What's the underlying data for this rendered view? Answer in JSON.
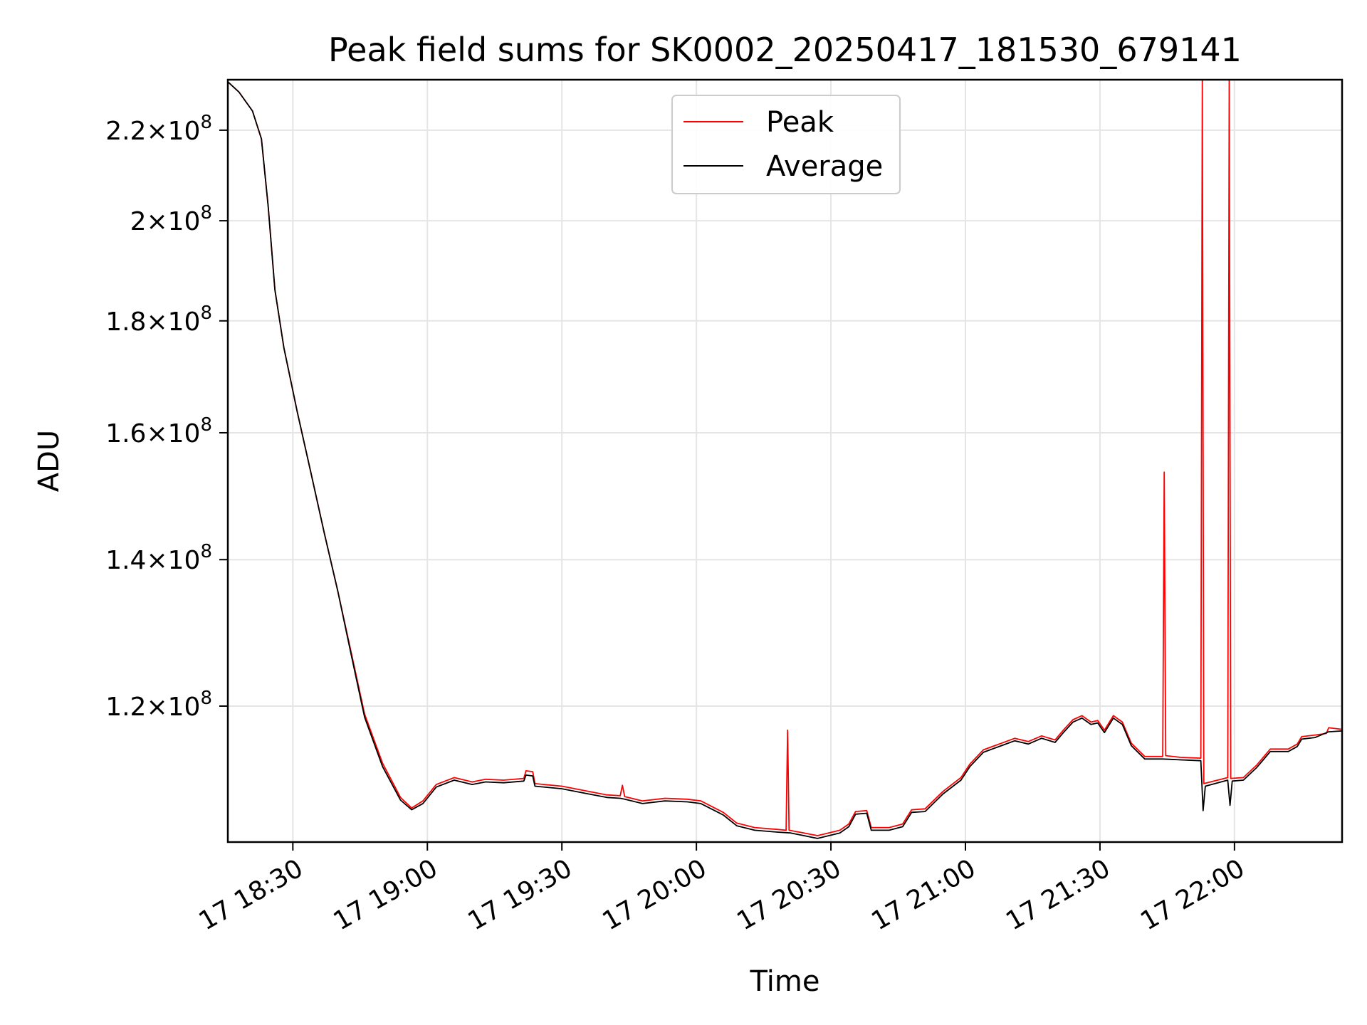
{
  "chart_data": {
    "type": "line",
    "title": "Peak field sums for SK0002_20250417_181530_679141",
    "xlabel": "Time",
    "ylabel": "ADU",
    "yscale": "log",
    "grid": true,
    "legend_position": "top-center",
    "xlim": [
      "2025-04-17 18:15:30",
      "2025-04-17 22:24:00"
    ],
    "ylim": [
      104000000,
      232000000
    ],
    "x_ticks": [
      {
        "value": "2025-04-17 18:30",
        "label": "17 18:30"
      },
      {
        "value": "2025-04-17 19:00",
        "label": "17 19:00"
      },
      {
        "value": "2025-04-17 19:30",
        "label": "17 19:30"
      },
      {
        "value": "2025-04-17 20:00",
        "label": "17 20:00"
      },
      {
        "value": "2025-04-17 20:30",
        "label": "17 20:30"
      },
      {
        "value": "2025-04-17 21:00",
        "label": "17 21:00"
      },
      {
        "value": "2025-04-17 21:30",
        "label": "17 21:30"
      },
      {
        "value": "2025-04-17 22:00",
        "label": "17 22:00"
      }
    ],
    "y_ticks": [
      {
        "value": 120000000,
        "mantissa": "1.2",
        "exponent": "8"
      },
      {
        "value": 140000000,
        "mantissa": "1.4",
        "exponent": "8"
      },
      {
        "value": 160000000,
        "mantissa": "1.6",
        "exponent": "8"
      },
      {
        "value": 180000000,
        "mantissa": "1.8",
        "exponent": "8"
      },
      {
        "value": 200000000,
        "mantissa": "2",
        "exponent": "8"
      },
      {
        "value": 220000000,
        "mantissa": "2.2",
        "exponent": "8"
      }
    ],
    "series": [
      {
        "name": "Peak",
        "color": "#ff0000",
        "points": [
          [
            "2025-04-17 18:15:30",
            231500000
          ],
          [
            "2025-04-17 18:18:00",
            229000000
          ],
          [
            "2025-04-17 18:21:00",
            224500000
          ],
          [
            "2025-04-17 18:23:00",
            218000000
          ],
          [
            "2025-04-17 18:24:30",
            203000000
          ],
          [
            "2025-04-17 18:26:00",
            186000000
          ],
          [
            "2025-04-17 18:28:00",
            175000000
          ],
          [
            "2025-04-17 18:31:00",
            163500000
          ],
          [
            "2025-04-17 18:34:00",
            153500000
          ],
          [
            "2025-04-17 18:37:00",
            144000000
          ],
          [
            "2025-04-17 18:40:00",
            135500000
          ],
          [
            "2025-04-17 18:43:00",
            127000000
          ],
          [
            "2025-04-17 18:46:00",
            119000000
          ],
          [
            "2025-04-17 18:50:00",
            113000000
          ],
          [
            "2025-04-17 18:54:00",
            109000000
          ],
          [
            "2025-04-17 18:56:30",
            107800000
          ],
          [
            "2025-04-17 18:59:00",
            108600000
          ],
          [
            "2025-04-17 19:02:00",
            110500000
          ],
          [
            "2025-04-17 19:06:00",
            111300000
          ],
          [
            "2025-04-17 19:10:00",
            110800000
          ],
          [
            "2025-04-17 19:13:00",
            111100000
          ],
          [
            "2025-04-17 19:17:00",
            111000000
          ],
          [
            "2025-04-17 19:21:30",
            111200000
          ],
          [
            "2025-04-17 19:22:00",
            112100000
          ],
          [
            "2025-04-17 19:23:30",
            112000000
          ],
          [
            "2025-04-17 19:24:00",
            110600000
          ],
          [
            "2025-04-17 19:30:00",
            110300000
          ],
          [
            "2025-04-17 19:35:00",
            109800000
          ],
          [
            "2025-04-17 19:40:00",
            109300000
          ],
          [
            "2025-04-17 19:43:00",
            109200000
          ],
          [
            "2025-04-17 19:43:30",
            110400000
          ],
          [
            "2025-04-17 19:44:00",
            109100000
          ],
          [
            "2025-04-17 19:48:00",
            108600000
          ],
          [
            "2025-04-17 19:53:00",
            108900000
          ],
          [
            "2025-04-17 19:58:00",
            108800000
          ],
          [
            "2025-04-17 20:01:00",
            108600000
          ],
          [
            "2025-04-17 20:06:00",
            107300000
          ],
          [
            "2025-04-17 20:09:00",
            106100000
          ],
          [
            "2025-04-17 20:13:00",
            105600000
          ],
          [
            "2025-04-17 20:18:00",
            105400000
          ],
          [
            "2025-04-17 20:20:00",
            105300000
          ],
          [
            "2025-04-17 20:20:20",
            117000000
          ],
          [
            "2025-04-17 20:20:40",
            105300000
          ],
          [
            "2025-04-17 20:24:00",
            105000000
          ],
          [
            "2025-04-17 20:27:00",
            104700000
          ],
          [
            "2025-04-17 20:32:00",
            105300000
          ],
          [
            "2025-04-17 20:34:00",
            106000000
          ],
          [
            "2025-04-17 20:35:30",
            107400000
          ],
          [
            "2025-04-17 20:38:00",
            107500000
          ],
          [
            "2025-04-17 20:39:00",
            105600000
          ],
          [
            "2025-04-17 20:43:00",
            105600000
          ],
          [
            "2025-04-17 20:46:00",
            106000000
          ],
          [
            "2025-04-17 20:48:00",
            107600000
          ],
          [
            "2025-04-17 20:51:00",
            107700000
          ],
          [
            "2025-04-17 20:55:00",
            109700000
          ],
          [
            "2025-04-17 20:59:00",
            111300000
          ],
          [
            "2025-04-17 21:01:00",
            112900000
          ],
          [
            "2025-04-17 21:04:00",
            114600000
          ],
          [
            "2025-04-17 21:08:00",
            115400000
          ],
          [
            "2025-04-17 21:11:00",
            116000000
          ],
          [
            "2025-04-17 21:14:00",
            115600000
          ],
          [
            "2025-04-17 21:17:00",
            116300000
          ],
          [
            "2025-04-17 21:20:00",
            115800000
          ],
          [
            "2025-04-17 21:22:00",
            117100000
          ],
          [
            "2025-04-17 21:24:00",
            118300000
          ],
          [
            "2025-04-17 21:26:00",
            118800000
          ],
          [
            "2025-04-17 21:28:00",
            118000000
          ],
          [
            "2025-04-17 21:29:30",
            118200000
          ],
          [
            "2025-04-17 21:31:00",
            117000000
          ],
          [
            "2025-04-17 21:33:00",
            118800000
          ],
          [
            "2025-04-17 21:35:00",
            118000000
          ],
          [
            "2025-04-17 21:37:00",
            115400000
          ],
          [
            "2025-04-17 21:40:00",
            113800000
          ],
          [
            "2025-04-17 21:44:00",
            113800000
          ],
          [
            "2025-04-17 21:44:20",
            153500000
          ],
          [
            "2025-04-17 21:44:40",
            113900000
          ],
          [
            "2025-04-17 21:48:00",
            113700000
          ],
          [
            "2025-04-17 21:52:30",
            113600000
          ],
          [
            "2025-04-17 21:52:50",
            232000000
          ],
          [
            "2025-04-17 21:53:10",
            110600000
          ],
          [
            "2025-04-17 21:58:30",
            111300000
          ],
          [
            "2025-04-17 21:58:50",
            232000000
          ],
          [
            "2025-04-17 21:59:10",
            111200000
          ],
          [
            "2025-04-17 22:02:00",
            111300000
          ],
          [
            "2025-04-17 22:05:00",
            112800000
          ],
          [
            "2025-04-17 22:08:00",
            114700000
          ],
          [
            "2025-04-17 22:12:00",
            114700000
          ],
          [
            "2025-04-17 22:14:00",
            115300000
          ],
          [
            "2025-04-17 22:15:00",
            116200000
          ],
          [
            "2025-04-17 22:18:00",
            116400000
          ],
          [
            "2025-04-17 22:20:30",
            116600000
          ],
          [
            "2025-04-17 22:21:00",
            117300000
          ],
          [
            "2025-04-17 22:24:00",
            117100000
          ]
        ]
      },
      {
        "name": "Average",
        "color": "#000000",
        "points": [
          [
            "2025-04-17 18:15:30",
            231500000
          ],
          [
            "2025-04-17 18:18:00",
            229000000
          ],
          [
            "2025-04-17 18:21:00",
            224500000
          ],
          [
            "2025-04-17 18:23:00",
            218000000
          ],
          [
            "2025-04-17 18:24:30",
            203000000
          ],
          [
            "2025-04-17 18:26:00",
            186000000
          ],
          [
            "2025-04-17 18:28:00",
            175000000
          ],
          [
            "2025-04-17 18:31:00",
            163500000
          ],
          [
            "2025-04-17 18:34:00",
            153500000
          ],
          [
            "2025-04-17 18:37:00",
            144000000
          ],
          [
            "2025-04-17 18:40:00",
            135500000
          ],
          [
            "2025-04-17 18:43:00",
            126700000
          ],
          [
            "2025-04-17 18:46:00",
            118600000
          ],
          [
            "2025-04-17 18:50:00",
            112600000
          ],
          [
            "2025-04-17 18:54:00",
            108700000
          ],
          [
            "2025-04-17 18:56:30",
            107600000
          ],
          [
            "2025-04-17 18:59:00",
            108300000
          ],
          [
            "2025-04-17 19:02:00",
            110200000
          ],
          [
            "2025-04-17 19:06:00",
            111000000
          ],
          [
            "2025-04-17 19:10:00",
            110500000
          ],
          [
            "2025-04-17 19:13:00",
            110800000
          ],
          [
            "2025-04-17 19:17:00",
            110700000
          ],
          [
            "2025-04-17 19:21:30",
            110900000
          ],
          [
            "2025-04-17 19:22:00",
            111600000
          ],
          [
            "2025-04-17 19:23:30",
            111500000
          ],
          [
            "2025-04-17 19:24:00",
            110300000
          ],
          [
            "2025-04-17 19:30:00",
            110000000
          ],
          [
            "2025-04-17 19:35:00",
            109500000
          ],
          [
            "2025-04-17 19:40:00",
            109000000
          ],
          [
            "2025-04-17 19:43:00",
            108900000
          ],
          [
            "2025-04-17 19:44:00",
            108800000
          ],
          [
            "2025-04-17 19:48:00",
            108300000
          ],
          [
            "2025-04-17 19:53:00",
            108600000
          ],
          [
            "2025-04-17 19:58:00",
            108500000
          ],
          [
            "2025-04-17 20:01:00",
            108300000
          ],
          [
            "2025-04-17 20:06:00",
            107000000
          ],
          [
            "2025-04-17 20:09:00",
            105800000
          ],
          [
            "2025-04-17 20:13:00",
            105300000
          ],
          [
            "2025-04-17 20:18:00",
            105100000
          ],
          [
            "2025-04-17 20:21:00",
            105000000
          ],
          [
            "2025-04-17 20:24:00",
            104700000
          ],
          [
            "2025-04-17 20:27:00",
            104400000
          ],
          [
            "2025-04-17 20:32:00",
            105000000
          ],
          [
            "2025-04-17 20:34:00",
            105700000
          ],
          [
            "2025-04-17 20:35:30",
            107100000
          ],
          [
            "2025-04-17 20:38:00",
            107200000
          ],
          [
            "2025-04-17 20:39:00",
            105300000
          ],
          [
            "2025-04-17 20:43:00",
            105300000
          ],
          [
            "2025-04-17 20:46:00",
            105700000
          ],
          [
            "2025-04-17 20:48:00",
            107300000
          ],
          [
            "2025-04-17 20:51:00",
            107400000
          ],
          [
            "2025-04-17 20:55:00",
            109400000
          ],
          [
            "2025-04-17 20:59:00",
            111000000
          ],
          [
            "2025-04-17 21:01:00",
            112600000
          ],
          [
            "2025-04-17 21:04:00",
            114300000
          ],
          [
            "2025-04-17 21:08:00",
            115100000
          ],
          [
            "2025-04-17 21:11:00",
            115700000
          ],
          [
            "2025-04-17 21:14:00",
            115300000
          ],
          [
            "2025-04-17 21:17:00",
            116000000
          ],
          [
            "2025-04-17 21:20:00",
            115500000
          ],
          [
            "2025-04-17 21:22:00",
            116800000
          ],
          [
            "2025-04-17 21:24:00",
            118000000
          ],
          [
            "2025-04-17 21:26:00",
            118500000
          ],
          [
            "2025-04-17 21:28:00",
            117700000
          ],
          [
            "2025-04-17 21:29:30",
            117900000
          ],
          [
            "2025-04-17 21:31:00",
            116700000
          ],
          [
            "2025-04-17 21:33:00",
            118500000
          ],
          [
            "2025-04-17 21:35:00",
            117700000
          ],
          [
            "2025-04-17 21:37:00",
            115100000
          ],
          [
            "2025-04-17 21:40:00",
            113500000
          ],
          [
            "2025-04-17 21:44:00",
            113500000
          ],
          [
            "2025-04-17 21:48:00",
            113400000
          ],
          [
            "2025-04-17 21:52:30",
            113300000
          ],
          [
            "2025-04-17 21:53:00",
            107500000
          ],
          [
            "2025-04-17 21:53:30",
            110300000
          ],
          [
            "2025-04-17 21:58:30",
            111000000
          ],
          [
            "2025-04-17 21:59:00",
            108100000
          ],
          [
            "2025-04-17 21:59:30",
            110900000
          ],
          [
            "2025-04-17 22:02:00",
            111000000
          ],
          [
            "2025-04-17 22:05:00",
            112500000
          ],
          [
            "2025-04-17 22:08:00",
            114400000
          ],
          [
            "2025-04-17 22:12:00",
            114400000
          ],
          [
            "2025-04-17 22:14:00",
            115000000
          ],
          [
            "2025-04-17 22:15:00",
            115900000
          ],
          [
            "2025-04-17 22:18:00",
            116100000
          ],
          [
            "2025-04-17 22:21:00",
            116800000
          ],
          [
            "2025-04-17 22:24:00",
            116900000
          ]
        ]
      }
    ]
  }
}
